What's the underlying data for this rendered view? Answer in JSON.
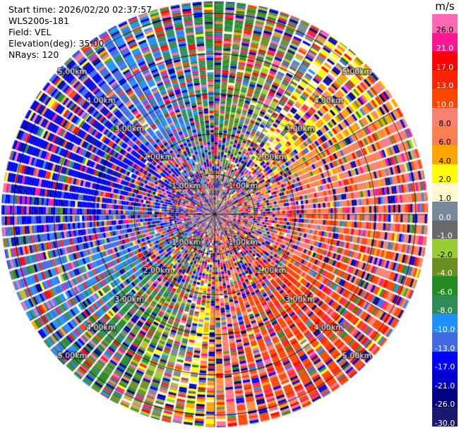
{
  "header": {
    "start_time": "Start time: 2026/02/20 02:37:57",
    "instrument": "WLS200s-181",
    "field": "Field: VEL",
    "elevation": "Elevation(deg): 35.00",
    "nrays": "NRays: 120"
  },
  "chart_data": {
    "type": "heatmap",
    "projection": "polar-ppi",
    "field": "VEL",
    "units": "m/s",
    "nrays": 120,
    "elevation_deg": 35.0,
    "range_rings_km": [
      1.0,
      2.0,
      3.0,
      4.0,
      5.0
    ],
    "ring_labels": [
      "1.00km",
      "2.00km",
      "3.00km",
      "4.00km",
      "5.00km"
    ],
    "max_range_km": 5.3,
    "colorbar": {
      "title": "m/s",
      "tick_labels": [
        "26.0",
        "21.0",
        "17.0",
        "13.0",
        "10.0",
        "8.0",
        "6.0",
        "4.0",
        "2.0",
        "1.0",
        "0.0",
        "-1.0",
        "-2.0",
        "-4.0",
        "-6.0",
        "-8.0",
        "-10.0",
        "-13.0",
        "-17.0",
        "-21.0",
        "-26.0",
        "-30.0"
      ],
      "colors": [
        "#ff69b4",
        "#ff1493",
        "#ff0000",
        "#ff2400",
        "#ff4500",
        "#fa8072",
        "#ff7f50",
        "#ffa500",
        "#ffff00",
        "#fffacd",
        "#778899",
        "#696969",
        "#9acd32",
        "#6b8e23",
        "#228b22",
        "#2e8b57",
        "#1e90ff",
        "#4169e1",
        "#0000ff",
        "#0000cd",
        "#000080",
        "#191970"
      ]
    },
    "velocity_pattern": {
      "description": "Noisy multi-coloured near field; coherent outer field receding (positive) to the east/south-east, approaching (negative) to the west/north-west",
      "coherent_from_km": 2.2,
      "sector_values": [
        {
          "azimuth_deg": 0,
          "value": -6.0
        },
        {
          "azimuth_deg": 20,
          "value": -2.0
        },
        {
          "azimuth_deg": 45,
          "value": 4.0
        },
        {
          "azimuth_deg": 75,
          "value": 8.0
        },
        {
          "azimuth_deg": 110,
          "value": 10.0
        },
        {
          "azimuth_deg": 140,
          "value": 13.0
        },
        {
          "azimuth_deg": 170,
          "value": 10.0
        },
        {
          "azimuth_deg": 200,
          "value": -2.0
        },
        {
          "azimuth_deg": 235,
          "value": -8.0
        },
        {
          "azimuth_deg": 265,
          "value": -13.0
        },
        {
          "azimuth_deg": 295,
          "value": -17.0
        },
        {
          "azimuth_deg": 330,
          "value": -10.0
        }
      ]
    }
  }
}
